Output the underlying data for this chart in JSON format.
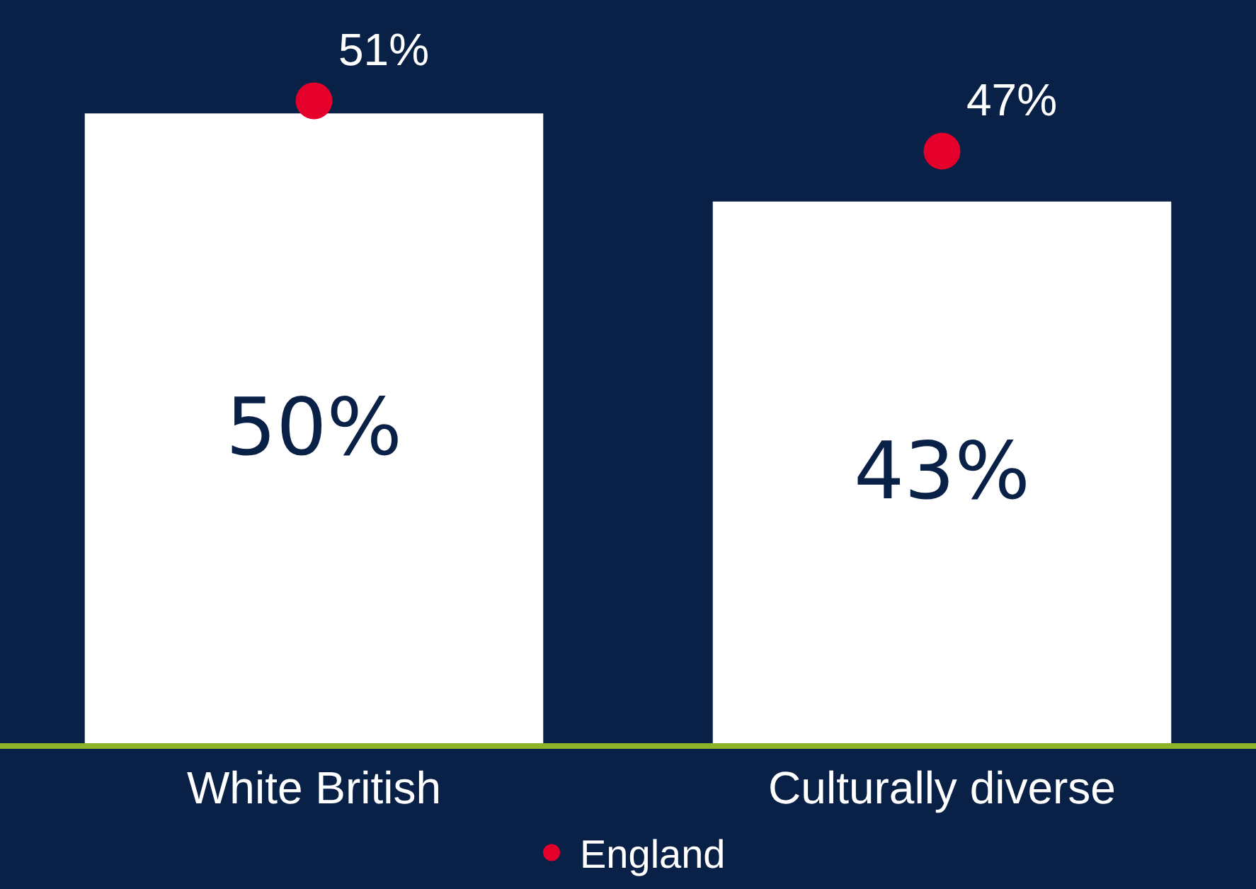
{
  "chart_data": {
    "type": "bar",
    "categories": [
      "White British",
      "Culturally diverse"
    ],
    "series": [
      {
        "color": "#ffffff",
        "values": [
          50,
          43
        ],
        "value_labels": [
          "50%",
          "43%"
        ]
      },
      {
        "type": "scatter",
        "name": "England",
        "color": "#e4002b",
        "values": [
          51,
          47
        ],
        "value_labels": [
          "51%",
          "47%"
        ]
      }
    ],
    "ylim": [
      0,
      59
    ],
    "tick_labels": "x",
    "legend": "bottom",
    "marker": "circle"
  }
}
